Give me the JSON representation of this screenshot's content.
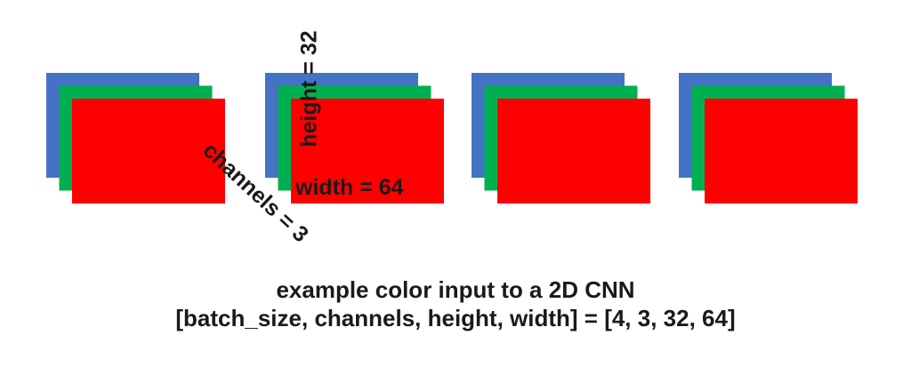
{
  "labels": {
    "height": "height = 32",
    "width": "width = 64",
    "channels": "channels = 3"
  },
  "caption": {
    "line1": "example color input to a 2D CNN",
    "line2": "[batch_size, channels, height, width] = [4, 3, 32, 64]"
  },
  "stacks": {
    "count": 4,
    "channel_colors": [
      "#4472c4",
      "#00b050",
      "#ff0000"
    ]
  }
}
